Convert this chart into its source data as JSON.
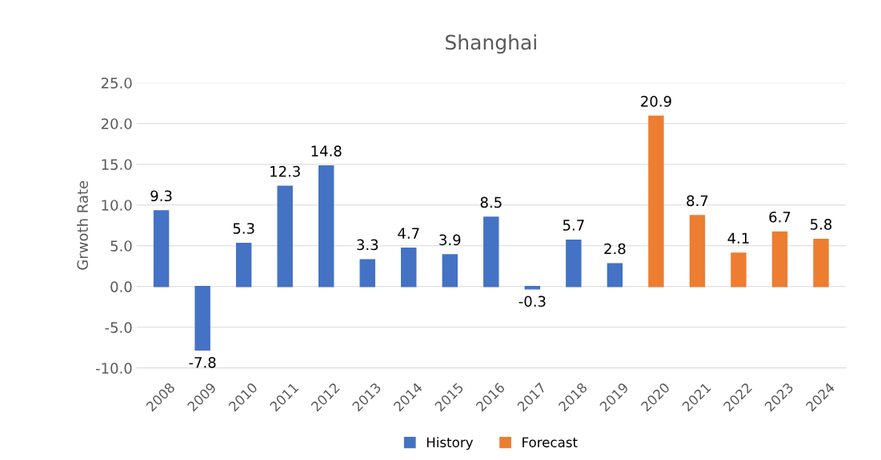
{
  "chart_data": {
    "type": "bar",
    "title": "Shanghai",
    "ylabel": "Grwoth Rate",
    "categories": [
      "2008",
      "2009",
      "2010",
      "2011",
      "2012",
      "2013",
      "2014",
      "2015",
      "2016",
      "2017",
      "2018",
      "2019",
      "2020",
      "2021",
      "2022",
      "2023",
      "2024"
    ],
    "series": [
      {
        "name": "History",
        "color": "#4472c4",
        "values": [
          9.3,
          -7.8,
          5.3,
          12.3,
          14.8,
          3.3,
          4.7,
          3.9,
          8.5,
          -0.3,
          5.7,
          2.8,
          null,
          null,
          null,
          null,
          null
        ]
      },
      {
        "name": "Forecast",
        "color": "#ed7d31",
        "values": [
          null,
          null,
          null,
          null,
          null,
          null,
          null,
          null,
          null,
          null,
          null,
          null,
          20.9,
          8.7,
          4.1,
          6.7,
          5.8
        ]
      }
    ],
    "ylim": [
      -10,
      25
    ],
    "yticks": [
      {
        "value": -10,
        "label": "-10.0"
      },
      {
        "value": -5,
        "label": "-5.0"
      },
      {
        "value": 0,
        "label": "0.0"
      },
      {
        "value": 5,
        "label": "5.0"
      },
      {
        "value": 10,
        "label": "10.0"
      },
      {
        "value": 15,
        "label": "15.0"
      },
      {
        "value": 20,
        "label": "20.0"
      },
      {
        "value": 25,
        "label": "25.0"
      }
    ],
    "grid": "y",
    "legend": "bottom",
    "data_labels": true
  }
}
